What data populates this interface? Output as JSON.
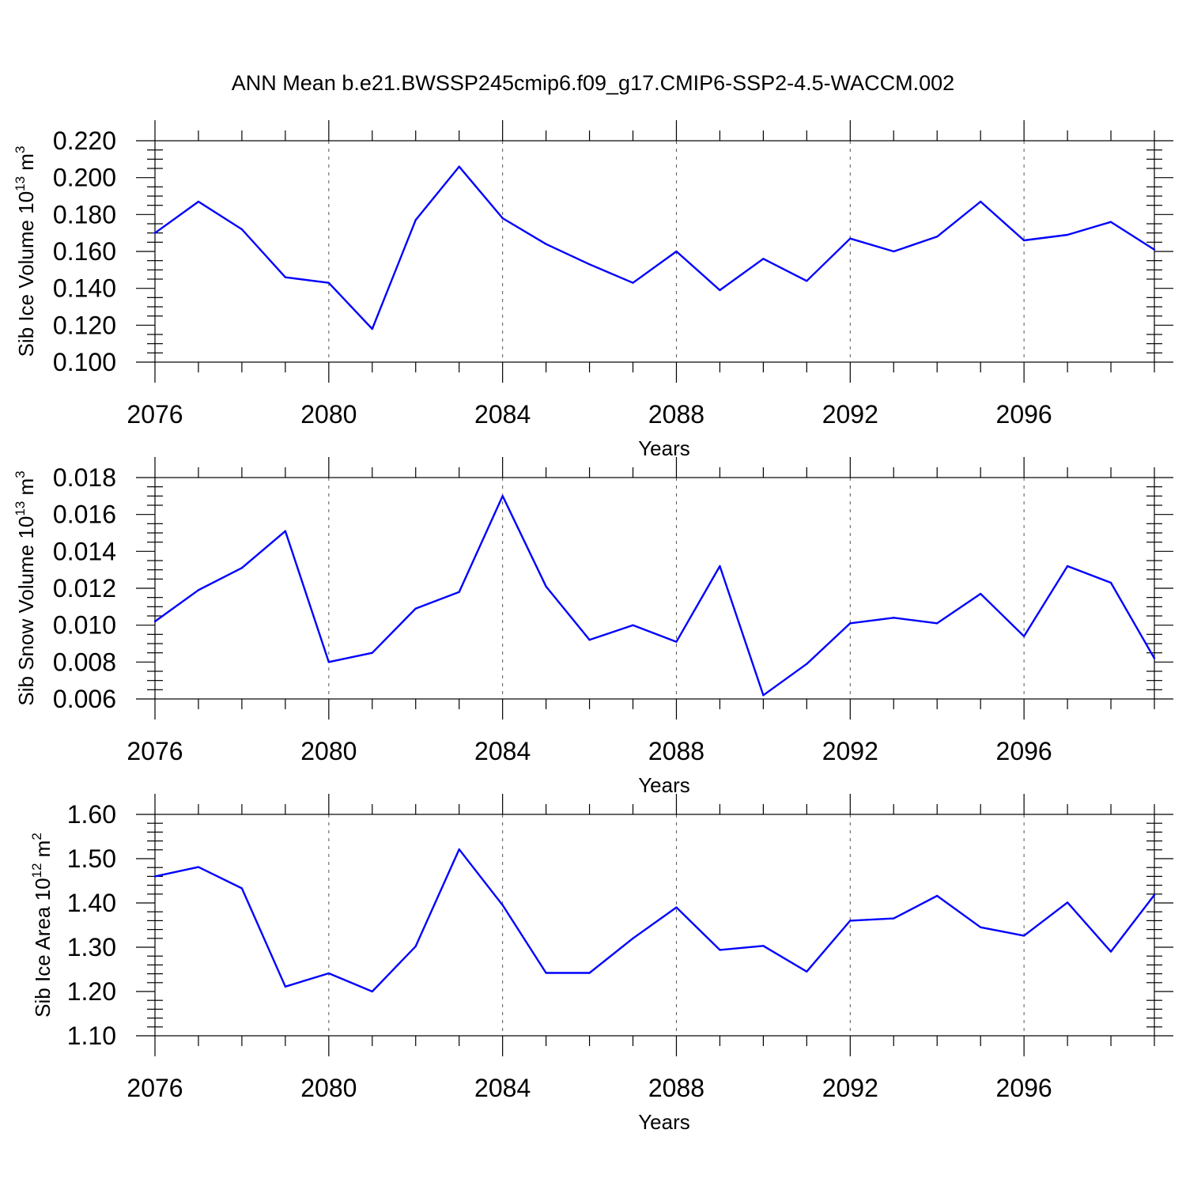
{
  "figure": {
    "title": "ANN Mean b.e21.BWSSP245cmip6.f09_g17.CMIP6-SSP2-4.5-WACCM.002",
    "line_color": "#0000ff"
  },
  "chart_data": [
    {
      "type": "line",
      "title": "ANN Mean b.e21.BWSSP245cmip6.f09_g17.CMIP6-SSP2-4.5-WACCM.002",
      "ylabel": "Sib Ice Volume 10",
      "ylabel_exp": "13",
      "ylabel_unit": " m",
      "ylabel_unit_exp": "3",
      "xlabel": "Years",
      "xlim": [
        2076,
        2099
      ],
      "ylim": [
        0.1,
        0.22
      ],
      "yticks": [
        0.1,
        0.12,
        0.14,
        0.16,
        0.18,
        0.2,
        0.22
      ],
      "ytick_labels": [
        "0.100",
        "0.120",
        "0.140",
        "0.160",
        "0.180",
        "0.200",
        "0.220"
      ],
      "ytick_minor_step": 0.005,
      "xticks": [
        2076,
        2080,
        2084,
        2088,
        2092,
        2096
      ],
      "xtick_labels": [
        "2076",
        "2080",
        "2084",
        "2088",
        "2092",
        "2096"
      ],
      "grid": "vertical dashed at major x ticks",
      "x": [
        2076,
        2077,
        2078,
        2079,
        2080,
        2081,
        2082,
        2083,
        2084,
        2085,
        2086,
        2087,
        2088,
        2089,
        2090,
        2091,
        2092,
        2093,
        2094,
        2095,
        2096,
        2097,
        2098,
        2099
      ],
      "series": [
        {
          "name": "Sib Ice Volume",
          "values": [
            0.17,
            0.187,
            0.172,
            0.146,
            0.143,
            0.118,
            0.177,
            0.206,
            0.178,
            0.164,
            0.153,
            0.143,
            0.16,
            0.139,
            0.156,
            0.144,
            0.167,
            0.16,
            0.168,
            0.187,
            0.166,
            0.169,
            0.176,
            0.161
          ]
        }
      ]
    },
    {
      "type": "line",
      "ylabel": "Sib Snow Volume 10",
      "ylabel_exp": "13",
      "ylabel_unit": " m",
      "ylabel_unit_exp": "3",
      "xlabel": "Years",
      "xlim": [
        2076,
        2099
      ],
      "ylim": [
        0.006,
        0.018
      ],
      "yticks": [
        0.006,
        0.008,
        0.01,
        0.012,
        0.014,
        0.016,
        0.018
      ],
      "ytick_labels": [
        "0.006",
        "0.008",
        "0.010",
        "0.012",
        "0.014",
        "0.016",
        "0.018"
      ],
      "ytick_minor_step": 0.0005,
      "xticks": [
        2076,
        2080,
        2084,
        2088,
        2092,
        2096
      ],
      "xtick_labels": [
        "2076",
        "2080",
        "2084",
        "2088",
        "2092",
        "2096"
      ],
      "grid": "vertical dashed at major x ticks",
      "x": [
        2076,
        2077,
        2078,
        2079,
        2080,
        2081,
        2082,
        2083,
        2084,
        2085,
        2086,
        2087,
        2088,
        2089,
        2090,
        2091,
        2092,
        2093,
        2094,
        2095,
        2096,
        2097,
        2098,
        2099
      ],
      "series": [
        {
          "name": "Sib Snow Volume",
          "values": [
            0.0102,
            0.0119,
            0.0131,
            0.0151,
            0.008,
            0.0085,
            0.0109,
            0.0118,
            0.017,
            0.0121,
            0.0092,
            0.01,
            0.0091,
            0.0132,
            0.0062,
            0.0079,
            0.0101,
            0.0104,
            0.0101,
            0.0117,
            0.0094,
            0.0132,
            0.0123,
            0.0082
          ]
        }
      ]
    },
    {
      "type": "line",
      "ylabel": "Sib Ice Area 10",
      "ylabel_exp": "12",
      "ylabel_unit": " m",
      "ylabel_unit_exp": "2",
      "xlabel": "Years",
      "xlim": [
        2076,
        2099
      ],
      "ylim": [
        1.1,
        1.6
      ],
      "yticks": [
        1.1,
        1.2,
        1.3,
        1.4,
        1.5,
        1.6
      ],
      "ytick_labels": [
        "1.10",
        "1.20",
        "1.30",
        "1.40",
        "1.50",
        "1.60"
      ],
      "ytick_minor_step": 0.02,
      "xticks": [
        2076,
        2080,
        2084,
        2088,
        2092,
        2096
      ],
      "xtick_labels": [
        "2076",
        "2080",
        "2084",
        "2088",
        "2092",
        "2096"
      ],
      "grid": "vertical dashed at major x ticks",
      "x": [
        2076,
        2077,
        2078,
        2079,
        2080,
        2081,
        2082,
        2083,
        2084,
        2085,
        2086,
        2087,
        2088,
        2089,
        2090,
        2091,
        2092,
        2093,
        2094,
        2095,
        2096,
        2097,
        2098,
        2099
      ],
      "series": [
        {
          "name": "Sib Ice Area",
          "values": [
            1.46,
            1.481,
            1.433,
            1.211,
            1.241,
            1.2,
            1.302,
            1.521,
            1.395,
            1.242,
            1.242,
            1.32,
            1.39,
            1.294,
            1.303,
            1.245,
            1.36,
            1.365,
            1.416,
            1.345,
            1.326,
            1.401,
            1.29,
            1.418
          ]
        }
      ]
    }
  ]
}
